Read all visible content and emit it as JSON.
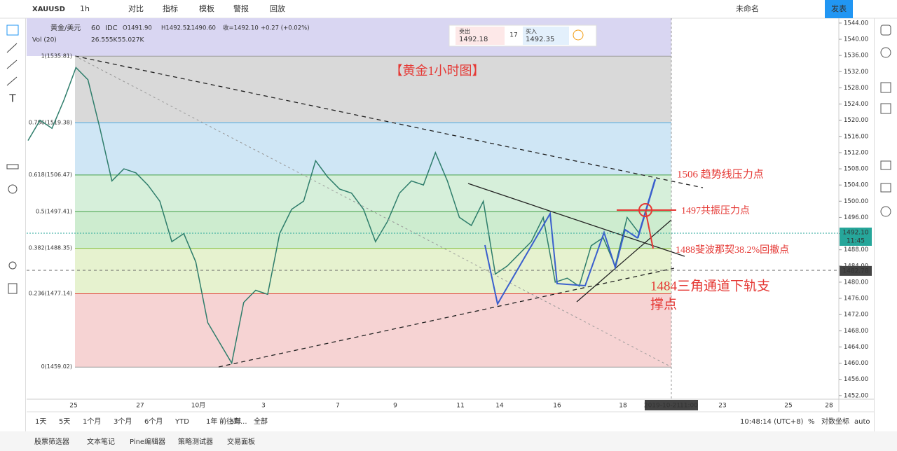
{
  "toolbar": {
    "symbol": "XAUUSD",
    "interval": "1h",
    "items": [
      "对比",
      "指标",
      "模板",
      "警报",
      "回放"
    ],
    "layout": "未命名",
    "publish": "发表"
  },
  "legend": {
    "name": "黄金/美元",
    "period": "60",
    "source": "IDC",
    "open": "O1491.90",
    "high": "H1492.52",
    "low": "L1490.60",
    "close": "收=1492.10",
    "change": "+0.27 (+0.02%)",
    "vol": "Vol (20)",
    "vol1": "26.555K",
    "vol2": "55.027K"
  },
  "quote": {
    "sell_label": "卖出",
    "sell": "1492.18",
    "spread": "17",
    "buy_label": "买入",
    "buy": "1492.35"
  },
  "title": "【黄金1小时图】",
  "fib": [
    {
      "label": "1(1535.81)",
      "price": 1535.81,
      "color": "#9e9e9e",
      "band": "#d9d9d9"
    },
    {
      "label": "0.786(1519.38)",
      "price": 1519.38,
      "color": "#4aa8e0",
      "band": "#cfe6f5"
    },
    {
      "label": "0.618(1506.47)",
      "price": 1506.47,
      "color": "#43a047",
      "band": "#d6efda"
    },
    {
      "label": "0.5(1497.41)",
      "price": 1497.41,
      "color": "#43a047",
      "band": "#cdeccf"
    },
    {
      "label": "0.382(1488.35)",
      "price": 1488.35,
      "color": "#8bc34a",
      "band": "#e6f2cf"
    },
    {
      "label": "0.236(1477.14)",
      "price": 1477.14,
      "color": "#e53935",
      "band": "#f6d3d3"
    },
    {
      "label": "0(1459.02)",
      "price": 1459.02,
      "color": "#9e9e9e",
      "band": null
    }
  ],
  "annotations": [
    "1506 趋势线压力点",
    "1497共振压力点",
    "1488斐波那契38.2%回撤点",
    "1484三角通道下轨支",
    "撑点"
  ],
  "price": [
    1515,
    1520,
    1518,
    1525,
    1533,
    1530,
    1518,
    1505,
    1508,
    1507,
    1504,
    1500,
    1490,
    1492,
    1485,
    1470,
    1465,
    1460,
    1475,
    1478,
    1477,
    1492,
    1498,
    1500,
    1510,
    1506,
    1503,
    1502,
    1498,
    1490,
    1495,
    1502,
    1505,
    1504,
    1512,
    1505,
    1496,
    1494,
    1500,
    1482,
    1484,
    1487,
    1490,
    1496,
    1480,
    1481,
    1479,
    1489,
    1491,
    1484,
    1496,
    1492.1
  ],
  "ylim": [
    1451.1,
    1545.2
  ],
  "yticks": [
    {
      "value": 1544,
      "label": "1544.00"
    },
    {
      "value": 1540,
      "label": "1540.00"
    },
    {
      "value": 1536,
      "label": "1536.00"
    },
    {
      "value": 1532,
      "label": "1532.00"
    },
    {
      "value": 1528,
      "label": "1528.00"
    },
    {
      "value": 1524,
      "label": "1524.00"
    },
    {
      "value": 1520,
      "label": "1520.00"
    },
    {
      "value": 1516,
      "label": "1516.00"
    },
    {
      "value": 1512,
      "label": "1512.00"
    },
    {
      "value": 1508,
      "label": "1508.00"
    },
    {
      "value": 1504,
      "label": "1504.00"
    },
    {
      "value": 1500,
      "label": "1500.00"
    },
    {
      "value": 1496,
      "label": "1496.00"
    },
    {
      "value": 1492,
      "label": "1492.00"
    },
    {
      "value": 1488,
      "label": "1488.00"
    },
    {
      "value": 1484,
      "label": "1484.00"
    },
    {
      "value": 1480,
      "label": "1480.00"
    },
    {
      "value": 1476,
      "label": "1476.00"
    },
    {
      "value": 1472,
      "label": "1472.00"
    },
    {
      "value": 1468,
      "label": "1468.00"
    },
    {
      "value": 1464,
      "label": "1464.00"
    },
    {
      "value": 1460,
      "label": "1460.00"
    },
    {
      "value": 1456,
      "label": "1456.00"
    },
    {
      "value": 1452,
      "label": "1452.00"
    }
  ],
  "last_price": {
    "value": 1492.1,
    "label": "1492.10",
    "time": "11:45"
  },
  "cursor_price": {
    "value": 1482.78,
    "label": "1482.78"
  },
  "dates": [
    "25",
    "27",
    "10月",
    "3",
    "7",
    "9",
    "11",
    "14",
    "16",
    "18",
    "23",
    "25",
    "28"
  ],
  "cursor_date": "2019-10-21",
  "cursor_time": "11:00",
  "ranges": [
    "1天",
    "5天",
    "1个月",
    "3个月",
    "6个月",
    "YTD",
    "1年",
    "5年",
    "全部"
  ],
  "goto": "前往到...",
  "clock": "10:48:14 (UTC+8)",
  "pct": "%",
  "log": "对数坐标",
  "auto": "auto",
  "tabs": [
    "股票筛选器",
    "文本笔记",
    "Pine编辑器",
    "策略测试器",
    "交易面板"
  ]
}
